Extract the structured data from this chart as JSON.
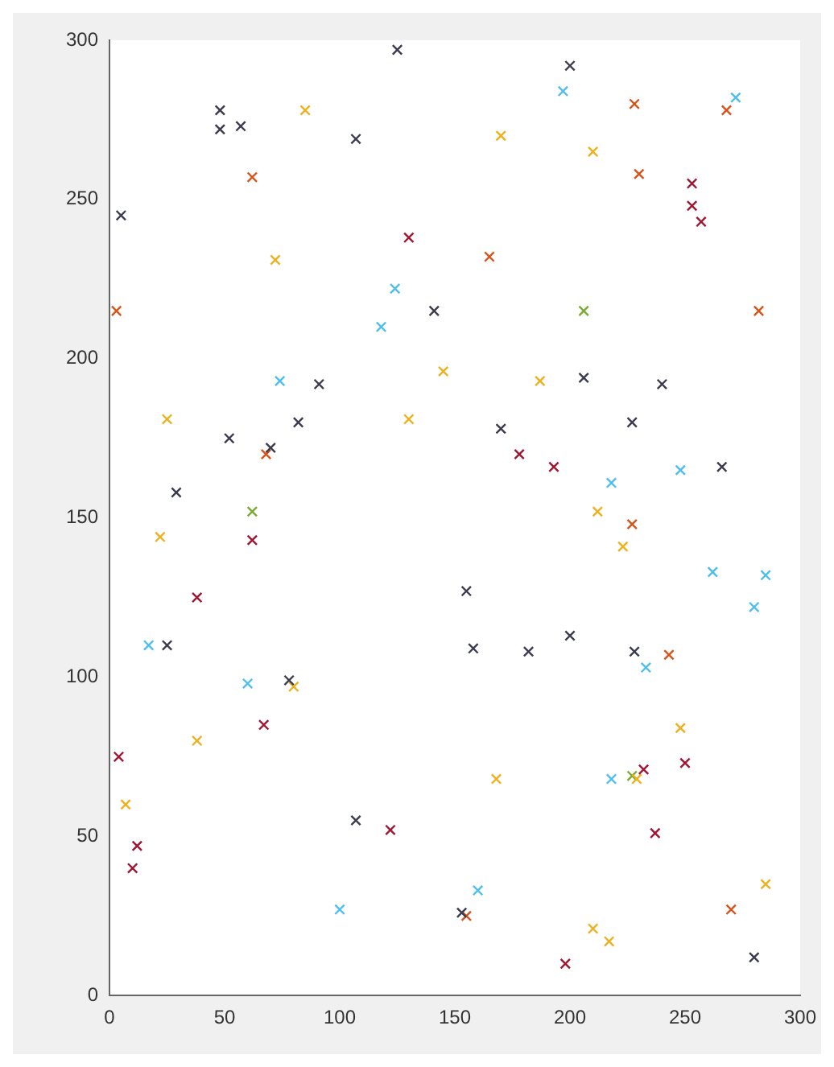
{
  "chart_data": {
    "type": "scatter",
    "xlim": [
      0,
      300
    ],
    "ylim": [
      0,
      300
    ],
    "xticks": [
      0,
      50,
      100,
      150,
      200,
      250,
      300
    ],
    "yticks": [
      0,
      50,
      100,
      150,
      200,
      250,
      300
    ],
    "grid": false,
    "legend": false,
    "marker": "cross",
    "series": [
      {
        "color": "#3c3c50",
        "x": [
          5,
          48,
          48,
          57,
          107,
          125,
          200,
          141,
          91,
          52,
          82,
          206,
          240,
          29,
          70,
          170,
          227,
          266,
          25,
          78,
          155,
          158,
          182,
          200,
          228,
          107,
          153,
          280
        ],
        "values": [
          245,
          278,
          272,
          273,
          269,
          297,
          292,
          215,
          192,
          175,
          180,
          194,
          192,
          158,
          172,
          178,
          180,
          166,
          110,
          99,
          127,
          109,
          108,
          113,
          108,
          55,
          26,
          12
        ]
      },
      {
        "color": "#a2142f",
        "x": [
          253,
          257,
          130,
          62,
          178,
          193,
          38,
          67,
          250,
          232,
          4,
          12,
          10,
          122,
          237,
          198,
          253
        ],
        "values": [
          255,
          243,
          238,
          143,
          170,
          166,
          125,
          85,
          73,
          71,
          75,
          47,
          40,
          52,
          51,
          10,
          248
        ]
      },
      {
        "color": "#d95319",
        "x": [
          3,
          62,
          228,
          268,
          230,
          165,
          282,
          68,
          227,
          243,
          155,
          270
        ],
        "values": [
          215,
          257,
          280,
          278,
          258,
          232,
          215,
          170,
          148,
          107,
          25,
          27
        ]
      },
      {
        "color": "#edb120",
        "x": [
          85,
          210,
          170,
          72,
          145,
          25,
          130,
          187,
          22,
          212,
          223,
          80,
          38,
          248,
          229,
          168,
          7,
          210,
          217,
          285
        ],
        "values": [
          278,
          265,
          270,
          231,
          196,
          181,
          181,
          193,
          144,
          152,
          141,
          97,
          80,
          84,
          68,
          68,
          60,
          21,
          17,
          35
        ]
      },
      {
        "color": "#4dbeee",
        "x": [
          197,
          272,
          124,
          118,
          74,
          218,
          248,
          262,
          280,
          285,
          17,
          60,
          233,
          218,
          100,
          160
        ],
        "values": [
          284,
          282,
          222,
          210,
          193,
          161,
          165,
          133,
          122,
          132,
          110,
          98,
          103,
          68,
          27,
          33
        ]
      },
      {
        "color": "#77ac30",
        "x": [
          206,
          62,
          227
        ],
        "values": [
          215,
          152,
          69
        ]
      }
    ]
  }
}
